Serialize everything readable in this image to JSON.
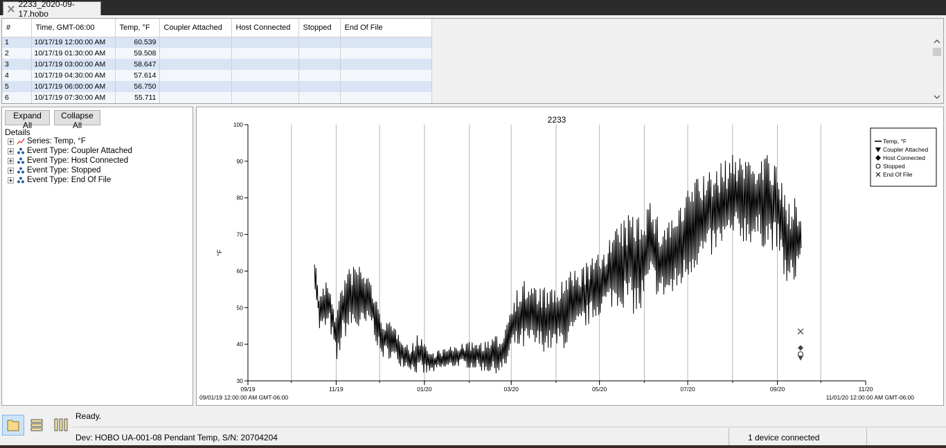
{
  "window": {
    "tab_title": "2233_2020-09-17.hobo"
  },
  "table": {
    "columns": [
      "#",
      "Time, GMT-06:00",
      "Temp, °F",
      "Coupler Attached",
      "Host Connected",
      "Stopped",
      "End Of File"
    ],
    "rows": [
      [
        "1",
        "10/17/19 12:00:00 AM",
        "60.539",
        "",
        "",
        "",
        ""
      ],
      [
        "2",
        "10/17/19 01:30:00 AM",
        "59.508",
        "",
        "",
        "",
        ""
      ],
      [
        "3",
        "10/17/19 03:00:00 AM",
        "58.647",
        "",
        "",
        "",
        ""
      ],
      [
        "4",
        "10/17/19 04:30:00 AM",
        "57.614",
        "",
        "",
        "",
        ""
      ],
      [
        "5",
        "10/17/19 06:00:00 AM",
        "56.750",
        "",
        "",
        "",
        ""
      ],
      [
        "6",
        "10/17/19 07:30:00 AM",
        "55.711",
        "",
        "",
        "",
        ""
      ]
    ]
  },
  "details": {
    "expand_all": "Expand All",
    "collapse_all": "Collapse All",
    "title": "Details",
    "items": [
      {
        "label": "Series: Temp, °F",
        "icon": "series-line-icon"
      },
      {
        "label": "Event Type: Coupler Attached",
        "icon": "event-scatter-icon"
      },
      {
        "label": "Event Type: Host Connected",
        "icon": "event-scatter-icon"
      },
      {
        "label": "Event Type: Stopped",
        "icon": "event-scatter-icon"
      },
      {
        "label": "Event Type: End Of File",
        "icon": "event-scatter-icon"
      }
    ]
  },
  "status": {
    "ready": "Ready.",
    "device": "Dev: HOBO UA-001-08 Pendant Temp, S/N: 20704204",
    "connected": "1 device connected"
  },
  "chart_data": {
    "type": "line",
    "title": "2233",
    "xlabel": "",
    "ylabel": "°F",
    "ylim": [
      30,
      100
    ],
    "yticks": [
      30,
      40,
      50,
      60,
      70,
      80,
      90,
      100
    ],
    "x_start_label": "09/01/19 12:00:00 AM GMT-06:00",
    "x_end_label": "11/01/20 12:00:00 AM GMT-06:00",
    "xlim": [
      "2019-09-01",
      "2020-11-01"
    ],
    "xticks": [
      {
        "date": "2019-09-01",
        "label": "09/19"
      },
      {
        "date": "2019-11-01",
        "label": "11/19"
      },
      {
        "date": "2020-01-01",
        "label": "01/20"
      },
      {
        "date": "2020-03-01",
        "label": "03/20"
      },
      {
        "date": "2020-05-01",
        "label": "05/20"
      },
      {
        "date": "2020-07-01",
        "label": "07/20"
      },
      {
        "date": "2020-09-01",
        "label": "09/20"
      },
      {
        "date": "2020-11-01",
        "label": "11/20"
      }
    ],
    "grid_dates": [
      "2019-10-01",
      "2019-11-01",
      "2019-12-01",
      "2020-01-01",
      "2020-02-01",
      "2020-03-01",
      "2020-04-01",
      "2020-05-01",
      "2020-06-01",
      "2020-07-01",
      "2020-08-01",
      "2020-09-01",
      "2020-10-01"
    ],
    "series": [
      {
        "name": "Temp, °F",
        "color": "#000000",
        "daily_range": [
          {
            "date": "2019-10-17",
            "min": 55,
            "max": 65
          },
          {
            "date": "2019-10-20",
            "min": 43,
            "max": 55
          },
          {
            "date": "2019-10-27",
            "min": 44,
            "max": 58
          },
          {
            "date": "2019-11-01",
            "min": 34,
            "max": 49
          },
          {
            "date": "2019-11-05",
            "min": 41,
            "max": 58
          },
          {
            "date": "2019-11-12",
            "min": 44,
            "max": 62
          },
          {
            "date": "2019-11-18",
            "min": 42,
            "max": 63
          },
          {
            "date": "2019-11-25",
            "min": 45,
            "max": 58
          },
          {
            "date": "2019-12-01",
            "min": 36,
            "max": 49
          },
          {
            "date": "2019-12-08",
            "min": 36,
            "max": 46
          },
          {
            "date": "2019-12-15",
            "min": 34,
            "max": 44
          },
          {
            "date": "2019-12-22",
            "min": 33,
            "max": 39
          },
          {
            "date": "2019-12-29",
            "min": 31,
            "max": 44
          },
          {
            "date": "2020-01-05",
            "min": 32,
            "max": 38
          },
          {
            "date": "2020-01-15",
            "min": 33,
            "max": 39
          },
          {
            "date": "2020-01-25",
            "min": 34,
            "max": 40
          },
          {
            "date": "2020-02-05",
            "min": 33,
            "max": 41
          },
          {
            "date": "2020-02-15",
            "min": 32,
            "max": 41
          },
          {
            "date": "2020-02-25",
            "min": 32,
            "max": 44
          },
          {
            "date": "2020-03-01",
            "min": 38,
            "max": 53
          },
          {
            "date": "2020-03-10",
            "min": 38,
            "max": 58
          },
          {
            "date": "2020-03-20",
            "min": 38,
            "max": 56
          },
          {
            "date": "2020-03-30",
            "min": 38,
            "max": 55
          },
          {
            "date": "2020-04-10",
            "min": 39,
            "max": 60
          },
          {
            "date": "2020-04-20",
            "min": 44,
            "max": 62
          },
          {
            "date": "2020-05-01",
            "min": 48,
            "max": 65
          },
          {
            "date": "2020-05-10",
            "min": 50,
            "max": 71
          },
          {
            "date": "2020-05-20",
            "min": 50,
            "max": 75
          },
          {
            "date": "2020-05-28",
            "min": 46,
            "max": 78
          },
          {
            "date": "2020-06-05",
            "min": 55,
            "max": 80
          },
          {
            "date": "2020-06-12",
            "min": 52,
            "max": 73
          },
          {
            "date": "2020-06-20",
            "min": 52,
            "max": 76
          },
          {
            "date": "2020-06-28",
            "min": 56,
            "max": 79
          },
          {
            "date": "2020-07-05",
            "min": 60,
            "max": 87
          },
          {
            "date": "2020-07-15",
            "min": 63,
            "max": 87
          },
          {
            "date": "2020-07-25",
            "min": 66,
            "max": 90
          },
          {
            "date": "2020-08-05",
            "min": 68,
            "max": 93
          },
          {
            "date": "2020-08-15",
            "min": 67,
            "max": 92
          },
          {
            "date": "2020-08-25",
            "min": 66,
            "max": 93
          },
          {
            "date": "2020-09-01",
            "min": 65,
            "max": 88
          },
          {
            "date": "2020-09-08",
            "min": 53,
            "max": 79
          },
          {
            "date": "2020-09-13",
            "min": 57,
            "max": 83
          },
          {
            "date": "2020-09-17",
            "min": 64,
            "max": 74
          }
        ]
      }
    ],
    "events": [
      {
        "name": "End Of File",
        "date": "2020-09-17",
        "value": 43.5,
        "marker": "x"
      },
      {
        "name": "Host Connected",
        "date": "2020-09-17",
        "value": 39,
        "marker": "diamond"
      },
      {
        "name": "Stopped",
        "date": "2020-09-17",
        "value": 37.3,
        "marker": "circle"
      },
      {
        "name": "Coupler Attached",
        "date": "2020-09-17",
        "value": 36.3,
        "marker": "triangle-down"
      }
    ],
    "legend": {
      "placement": "top-right",
      "entries": [
        "Temp, °F",
        "Coupler Attached",
        "Host Connected",
        "Stopped",
        "End Of File"
      ]
    },
    "grid": true
  }
}
